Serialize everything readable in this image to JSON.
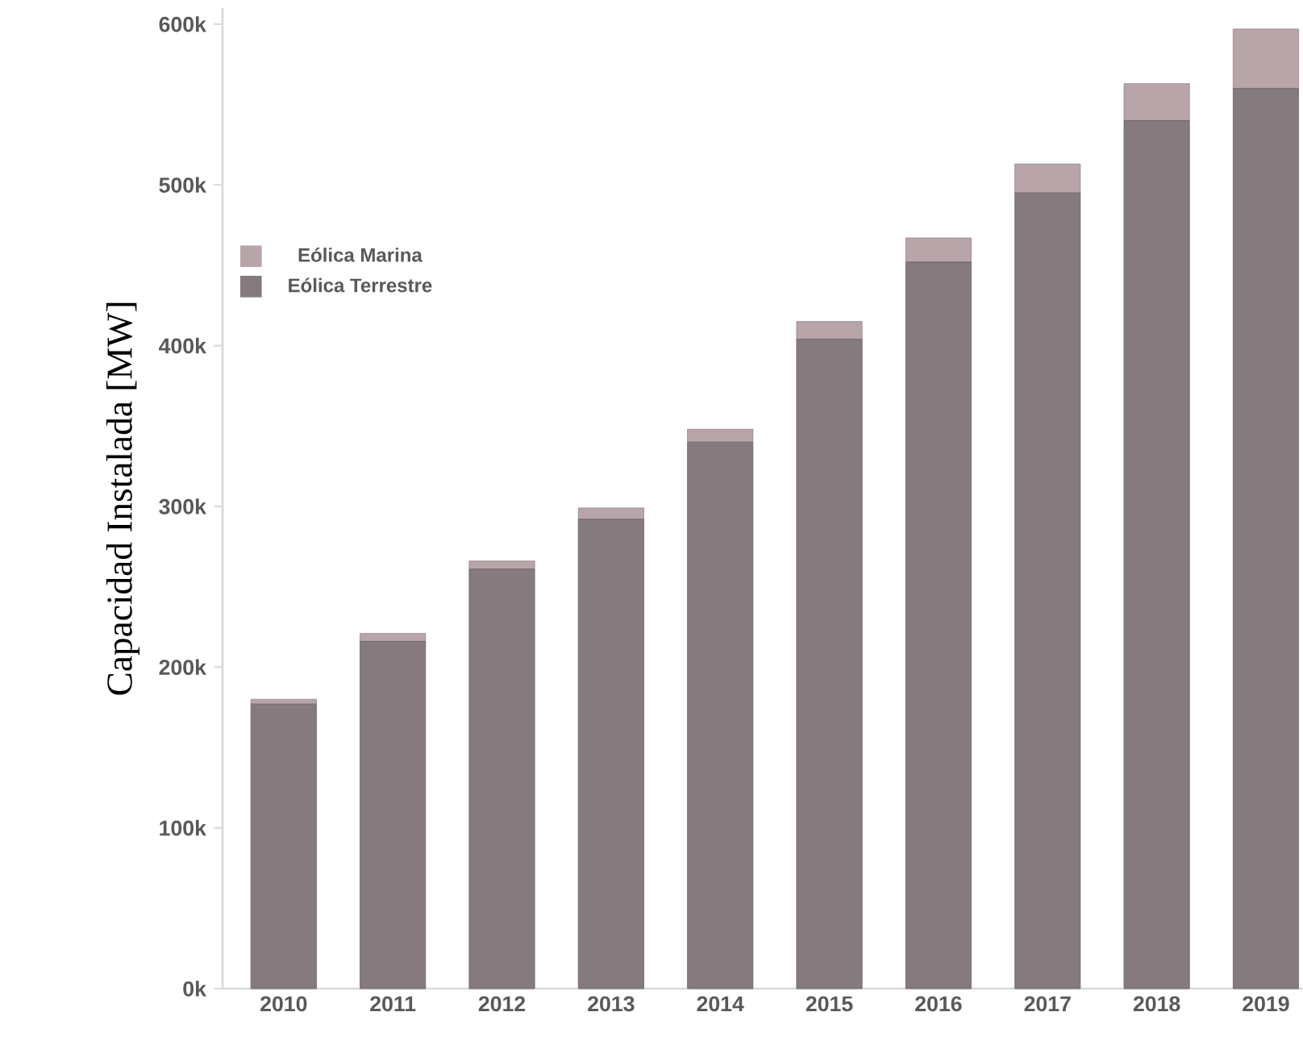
{
  "chart_data": {
    "type": "bar",
    "stacked": true,
    "ylabel": "Capacidad Instalada [MW]",
    "categories": [
      "2010",
      "2011",
      "2012",
      "2013",
      "2014",
      "2015",
      "2016",
      "2017",
      "2018",
      "2019"
    ],
    "series": [
      {
        "name": "Eólica Terrestre",
        "color": "#857a7e",
        "values": [
          177000,
          216000,
          261000,
          292000,
          340000,
          404000,
          452000,
          495000,
          540000,
          560000
        ]
      },
      {
        "name": "Eólica Marina",
        "color": "#b8a5a9",
        "values": [
          3000,
          5000,
          5000,
          7000,
          8000,
          11000,
          15000,
          18000,
          23000,
          37000
        ]
      }
    ],
    "ylim": [
      0,
      610000
    ],
    "yticks": [
      {
        "value": 0,
        "label": "0k"
      },
      {
        "value": 100000,
        "label": "100k"
      },
      {
        "value": 200000,
        "label": "200k"
      },
      {
        "value": 300000,
        "label": "300k"
      },
      {
        "value": 400000,
        "label": "400k"
      },
      {
        "value": 500000,
        "label": "500k"
      },
      {
        "value": 600000,
        "label": "600k"
      }
    ],
    "legend": "top left",
    "grid": false
  }
}
